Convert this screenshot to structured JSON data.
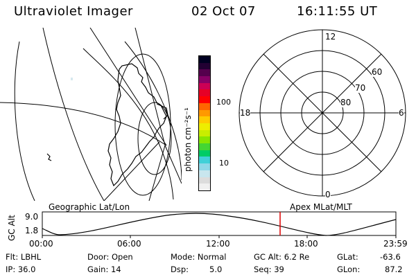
{
  "header": {
    "instrument": "Ultraviolet Imager",
    "date": "02 Oct 07",
    "time": "16:11:55 UT"
  },
  "colorbar": {
    "unit_label": "photon cm⁻²s⁻¹",
    "tick_labels": [
      "100",
      "10"
    ],
    "colors": [
      "#f0f0f0",
      "#dcdcdc",
      "#c8e6ee",
      "#8fd8e8",
      "#40d0d8",
      "#00cc66",
      "#44d633",
      "#88e600",
      "#c8ee00",
      "#eeee00",
      "#ffcc00",
      "#ff9900",
      "#ff6600",
      "#ff0000",
      "#e60026",
      "#cc0055",
      "#880066",
      "#55004d",
      "#220033",
      "#000022"
    ]
  },
  "polar": {
    "mlt_labels": {
      "top": "12",
      "bottom": "0",
      "left": "18",
      "right": "6"
    },
    "lat_labels": [
      "60",
      "70",
      "80"
    ]
  },
  "timeline": {
    "left_label": "Geographic Lat/Lon",
    "right_label": "Apex MLat/MLT",
    "y_axis_label": "GC Alt",
    "y_ticks": [
      "9.0",
      "1.8"
    ],
    "x_ticks": [
      "00:00",
      "06:00",
      "12:00",
      "18:00",
      "23:59"
    ],
    "marker_color": "#dd0000"
  },
  "status": {
    "flt": "Flt: LBHL",
    "ip": "IP: 36.0",
    "door": "Door: Open",
    "gain": "Gain: 14",
    "mode": "Mode: Normal",
    "dsp_label": "Dsp:",
    "dsp_value": "5.0",
    "gc_alt": "GC Alt: 6.2 Re",
    "seq": "Seq: 39",
    "glat_label": "GLat:",
    "glat_value": "-63.6",
    "glon_label": "GLon:",
    "glon_value": "87.2"
  }
}
